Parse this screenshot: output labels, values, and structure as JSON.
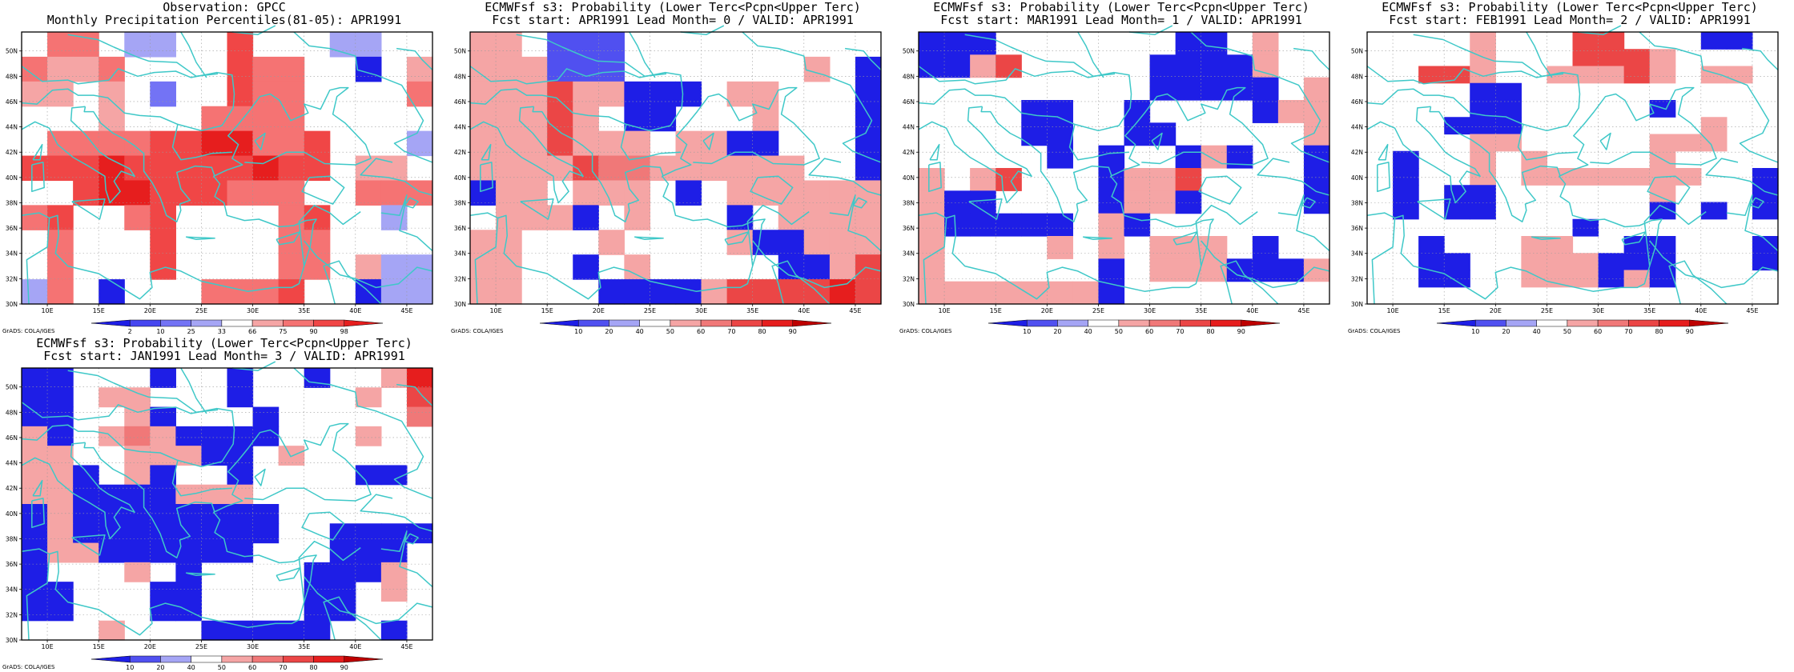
{
  "footer_credit": "GrADS: COLA/IGES",
  "lon_ticks": [
    "10E",
    "15E",
    "20E",
    "25E",
    "30E",
    "35E",
    "40E",
    "45E"
  ],
  "lat_ticks": [
    "30N",
    "32N",
    "34N",
    "36N",
    "38N",
    "40N",
    "42N",
    "44N",
    "46N",
    "48N",
    "50N"
  ],
  "coastline_color": "#3fc8c8",
  "colorbars": {
    "percentile": {
      "labels": [
        "2",
        "10",
        "25",
        "33",
        "66",
        "75",
        "90",
        "98"
      ],
      "colors": [
        "#1e1ee6",
        "#4646f0",
        "#7373f5",
        "#a5a5f5",
        "#ffffff",
        "#f5a5a5",
        "#f57373",
        "#f04646",
        "#e61e1e"
      ]
    },
    "probability": {
      "labels": [
        "10",
        "20",
        "40",
        "50",
        "60",
        "70",
        "80",
        "90"
      ],
      "colors": [
        "#1e1ee6",
        "#5050f0",
        "#a5a5f5",
        "#ffffff",
        "#f5a5a5",
        "#f07878",
        "#eb4646",
        "#e61e1e",
        "#be0000"
      ]
    }
  },
  "panels": [
    {
      "title1": "Observation: GPCC",
      "title2": "Monthly Precipitation Percentiles(81-05): APR1991",
      "colorbar": "percentile",
      "grid": [
        "0 6 6 0 4 4 0 0 7 0 0 0 4 4 0 0",
        "6 5 5 6 0 0 0 0 7 6 6 0 0 1 0 5",
        "5 5 0 5 0 3 0 0 7 6 6 0 0 0 0 6",
        "0 0 0 5 0 0 0 6 6 6 6 0 0 0 0 0",
        "0 6 6 6 6 7 7 8 8 6 6 7 0 0 0 4",
        "7 7 7 8 7 7 7 7 7 8 7 7 0 5 5 0",
        "0 0 7 8 8 7 7 7 6 6 6 0 0 6 6 6",
        "6 7 0 0 6 7 0 0 0 0 6 7 0 0 4 0",
        "0 6 0 0 0 7 0 0 0 0 6 6 0 0 0 0",
        "0 6 0 0 0 7 0 0 0 0 6 6 0 5 4 4",
        "4 6 0 1 0 0 0 6 6 6 7 0 0 1 4 4"
      ]
    },
    {
      "title1": "ECMWFsf s3: Probability (Lower Terc<Pcpn<Upper Terc)",
      "title2": "Fcst start: APR1991  Lead Month= 0 / VALID: APR1991",
      "colorbar": "probability",
      "grid": [
        "4 4 0 2 2 2 0 0 0 0 0 0 0 0 0 0",
        "4 4 4 2 2 2 0 0 0 0 0 0 0 4 0 1",
        "4 4 4 6 4 4 1 1 1 0 4 4 0 0 0 1",
        "4 4 4 6 4 0 1 1 0 0 0 4 0 0 0 1",
        "4 4 4 6 4 4 4 0 4 4 1 1 0 0 0 1",
        "4 4 4 4 6 5 5 4 4 4 4 4 4 0 0 1",
        "1 4 4 0 4 4 4 0 1 0 4 4 4 4 4 4",
        "0 4 4 4 1 0 4 0 0 0 1 0 4 4 4 4",
        "4 4 0 0 0 4 0 0 0 0 4 1 1 4 4 4",
        "4 4 0 0 1 0 4 0 0 0 0 0 1 1 4 6",
        "4 4 0 0 0 1 1 1 1 4 6 6 6 6 7 6"
      ]
    },
    {
      "title1": "ECMWFsf s3: Probability (Lower Terc<Pcpn<Upper Terc)",
      "title2": "Fcst start: MAR1991  Lead Month= 1 / VALID: APR1991",
      "colorbar": "probability",
      "grid": [
        "1 1 1 0 0 0 0 0 0 0 1 1 0 4 0 0",
        "1 1 4 6 0 0 0 0 0 1 1 1 1 4 0 0",
        "0 0 0 0 0 0 0 0 0 1 1 1 1 1 0 4",
        "0 0 0 0 1 1 0 0 1 0 0 0 0 1 4 4",
        "0 0 0 0 1 1 0 0 1 1 0 0 0 0 0 4",
        "0 0 0 0 0 1 0 1 0 0 1 4 1 0 0 1",
        "4 0 4 6 0 0 0 1 4 4 6 0 0 0 0 1",
        "4 1 1 0 0 0 0 1 4 4 1 0 0 0 0 1",
        "4 1 1 1 1 1 0 4 1 0 0 0 0 0 0 0",
        "4 0 0 0 0 4 0 4 0 4 4 4 0 1 0 0",
        "4 0 0 0 0 0 0 1 0 4 4 4 1 1 1 4",
        "4 4 4 4 4 4 4 1 0 0 0 0 0 0 0 0"
      ]
    },
    {
      "title1": "ECMWFsf s3: Probability (Lower Terc<Pcpn<Upper Terc)",
      "title2": "Fcst start: FEB1991  Lead Month= 2 / VALID: APR1991",
      "colorbar": "probability",
      "grid": [
        "0 0 0 0 4 0 0 0 6 6 0 0 0 1 1 0",
        "0 0 0 0 4 0 0 0 6 6 6 4 0 0 0 0",
        "0 0 6 6 4 0 0 4 4 4 6 4 0 4 4 0",
        "0 0 0 0 1 1 0 0 0 0 0 0 0 0 0 0",
        "0 0 0 0 1 1 0 0 0 0 0 1 0 0 0 0",
        "0 0 0 1 1 1 0 0 0 0 0 0 0 4 0 0",
        "0 0 0 0 4 4 0 0 0 0 0 4 4 4 0 0",
        "0 1 0 0 4 0 4 0 0 0 0 4 0 0 0 0",
        "0 1 0 0 4 0 4 4 4 4 4 4 4 0 0 1",
        "0 1 0 1 1 0 0 0 0 0 0 4 0 0 0 1",
        "0 1 0 1 1 0 0 0 0 0 0 1 0 1 0 1",
        "0 0 0 0 0 0 0 0 1 0 0 0 0 0 0 0",
        "0 0 1 0 0 0 4 4 0 0 1 1 0 0 0 1",
        "0 0 1 1 0 0 4 4 4 1 1 1 0 0 0 1",
        "0 0 1 1 0 0 4 4 4 1 4 1 0 0 0 0",
        "0 0 0 0 0 0 0 0 0 0 0 0 0 0 0 0"
      ]
    },
    {
      "title1": "ECMWFsf s3: Probability (Lower Terc<Pcpn<Upper Terc)",
      "title2": "Fcst start: JAN1991  Lead Month= 3 / VALID: APR1991",
      "colorbar": "probability",
      "grid": [
        "1 1 0 0 0 1 0 0 1 0 0 1 0 0 4 7",
        "1 1 0 4 4 0 0 0 1 0 0 0 0 4 0 6",
        "1 1 0 0 4 1 0 0 0 1 0 0 0 0 0 5",
        "4 1 0 4 5 4 1 1 1 1 0 0 0 4 0 0",
        "4 4 0 0 4 4 4 1 1 0 4 0 0 0 0 0",
        "4 4 1 0 4 1 0 0 1 0 0 0 0 1 1 0",
        "4 4 1 1 1 1 4 4 4 0 0 0 0 0 0 0",
        "1 4 1 1 1 1 1 1 1 1 0 0 0 0 0 0",
        "1 4 1 1 1 1 1 1 1 1 0 0 1 1 1 1",
        "1 4 4 1 1 1 1 1 1 0 0 0 1 1 1 0",
        "1 0 0 0 4 0 1 0 0 0 0 1 1 1 4 0",
        "1 1 0 0 0 1 1 0 0 0 0 1 1 0 4 0",
        "1 1 0 0 0 1 1 0 0 0 0 1 1 0 0 0",
        "0 0 0 4 0 0 0 1 1 1 1 1 0 0 1 0"
      ]
    }
  ]
}
